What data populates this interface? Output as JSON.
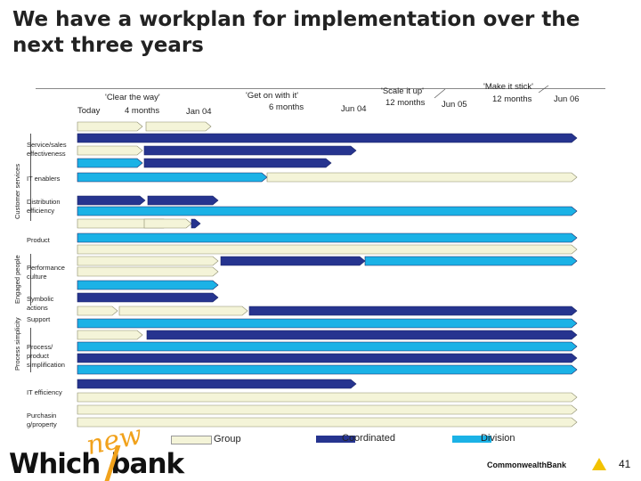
{
  "title": "We have a workplan for implementation over the next three years",
  "timeline": {
    "today": "Today",
    "phase1_name": "'Clear the way'",
    "phase1_dur": "4 months",
    "jan04": "Jan 04",
    "phase2_name": "'Get on with it'",
    "phase2_dur": "6 months",
    "jun04": "Jun 04",
    "phase3_name": "'Scale it up'",
    "phase3_dur": "12 months",
    "jun05": "Jun 05",
    "phase4_name": "'Make it stick'",
    "phase4_dur": "12 months",
    "jun06": "Jun 06"
  },
  "groups": {
    "customer": "Customer services",
    "people": "Engaged people",
    "process": "Process simplicity"
  },
  "rows": {
    "service": "Service/sales effectiveness",
    "it_enablers": "IT enablers",
    "distribution": "Distribution efficiency",
    "product": "Product",
    "performance": "Performance culture",
    "symbolic": "Symbolic actions",
    "support": "Support",
    "process": "Process/ product simplification",
    "it_eff": "IT efficiency",
    "purchasing": "Purchasin g/property"
  },
  "legend": {
    "group": "Group",
    "coordinated": "Coordinated",
    "division": "Division"
  },
  "colors": {
    "group": "#f4f4d8",
    "coordinated": "#26348f",
    "division": "#1bb2e6"
  },
  "footer": {
    "brand_new": "new",
    "brand_which": "Which",
    "brand_bank": "bank",
    "cba": "CommonwealthBank",
    "page": "41"
  }
}
